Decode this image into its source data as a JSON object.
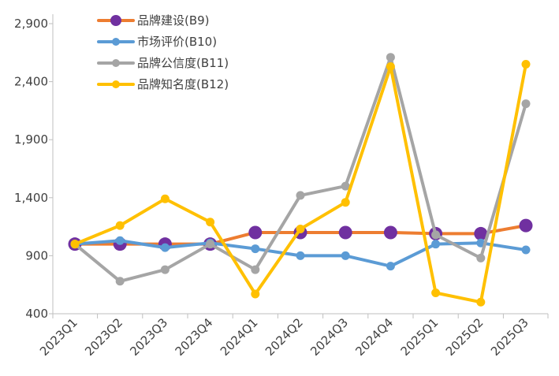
{
  "chart_data": {
    "type": "line",
    "title": "",
    "xlabel": "",
    "ylabel": "",
    "categories": [
      "2023Q1",
      "2023Q2",
      "2023Q3",
      "2023Q4",
      "2024Q1",
      "2024Q2",
      "2024Q3",
      "2024Q4",
      "2025Q1",
      "2025Q2",
      "2025Q3"
    ],
    "ylim": [
      400,
      2900
    ],
    "yticks": [
      400,
      900,
      1400,
      1900,
      2400,
      2900
    ],
    "ytick_labels": [
      "400",
      "900",
      "1,400",
      "1,900",
      "2,400",
      "2,900"
    ],
    "grid": false,
    "legend_position": "top-left",
    "series": [
      {
        "name": "品牌建设(B9)",
        "color": "#ED7D31",
        "marker_color": "#7030A0",
        "marker": "large-circle",
        "values": [
          1000,
          1000,
          1000,
          1000,
          1100,
          1100,
          1100,
          1100,
          1090,
          1090,
          1160
        ]
      },
      {
        "name": "市场评价(B10)",
        "color": "#5B9BD5",
        "marker_color": "#5B9BD5",
        "marker": "circle",
        "values": [
          1000,
          1030,
          970,
          1010,
          960,
          900,
          900,
          810,
          1000,
          1010,
          950
        ]
      },
      {
        "name": "品牌公信度(B11)",
        "color": "#A5A5A5",
        "marker_color": "#A5A5A5",
        "marker": "circle",
        "values": [
          1000,
          680,
          780,
          1000,
          780,
          1420,
          1500,
          2610,
          1080,
          880,
          2210
        ]
      },
      {
        "name": "品牌知名度(B12)",
        "color": "#FFC000",
        "marker_color": "#FFC000",
        "marker": "circle",
        "values": [
          1000,
          1160,
          1390,
          1190,
          570,
          1130,
          1360,
          2530,
          580,
          500,
          2550
        ]
      }
    ]
  }
}
